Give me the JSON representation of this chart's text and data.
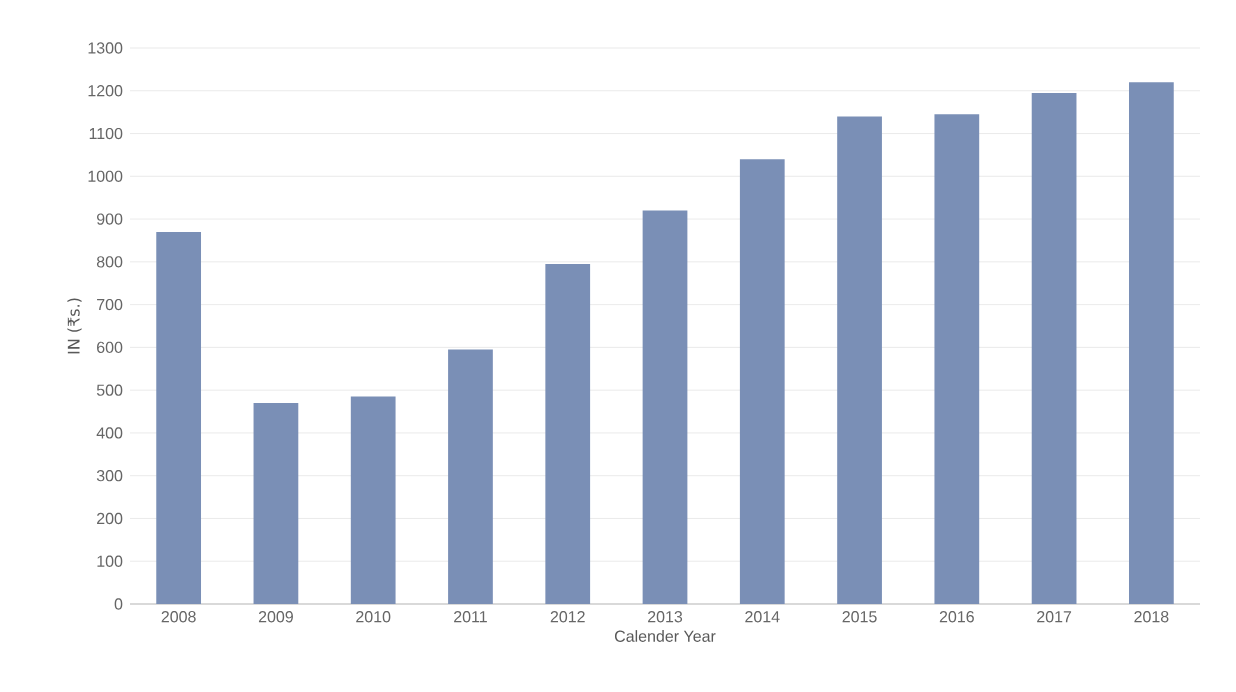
{
  "chart_data": {
    "type": "bar",
    "xlabel": "Calender Year",
    "ylabel": "IN (₹s.)",
    "categories": [
      "2008",
      "2009",
      "2010",
      "2011",
      "2012",
      "2013",
      "2014",
      "2015",
      "2016",
      "2017",
      "2018"
    ],
    "values": [
      870,
      470,
      485,
      595,
      795,
      920,
      1040,
      1140,
      1145,
      1195,
      1220
    ],
    "color": "#7a8fb6",
    "ylim": [
      0,
      1300
    ],
    "yticks": [
      0,
      100,
      200,
      300,
      400,
      500,
      600,
      700,
      800,
      900,
      1000,
      1100,
      1200,
      1300
    ],
    "grid": "y"
  }
}
